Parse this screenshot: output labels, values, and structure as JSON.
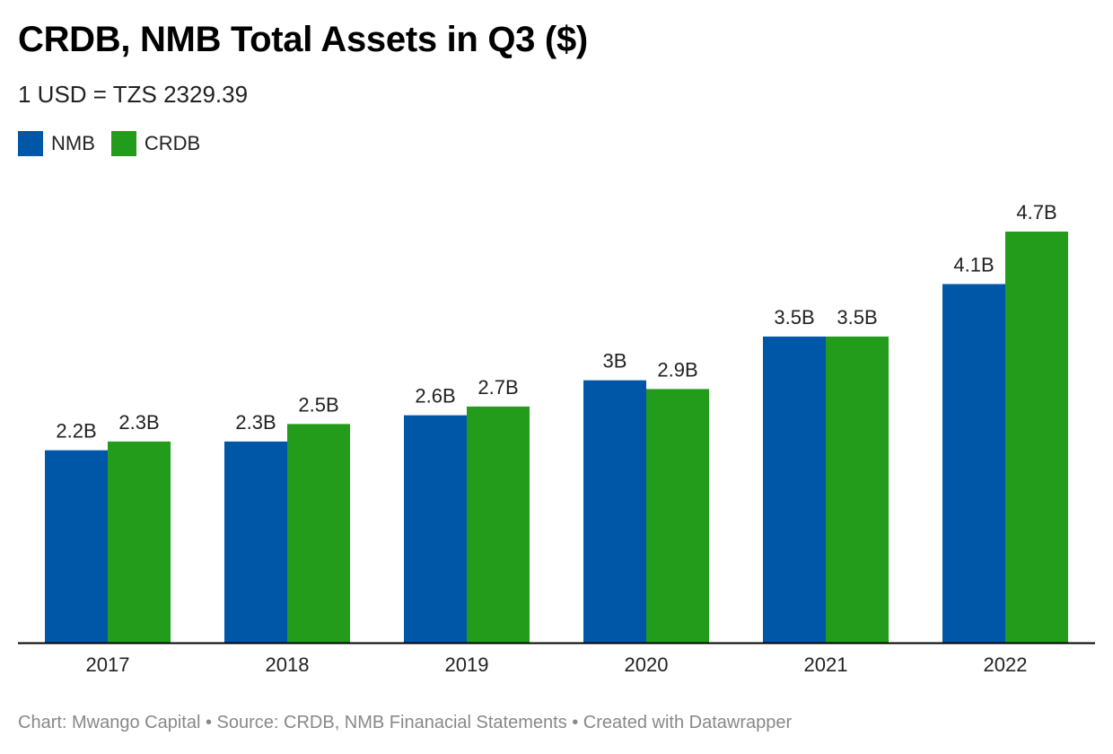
{
  "colors": {
    "NMB": "#0057A8",
    "CRDB": "#239B1B",
    "axis": "#000000",
    "label": "#222222"
  },
  "chart_data": {
    "type": "bar",
    "title": "CRDB, NMB Total Assets in Q3 ($)",
    "subtitle": "1 USD = TZS 2329.39",
    "categories": [
      "2017",
      "2018",
      "2019",
      "2020",
      "2021",
      "2022"
    ],
    "series": [
      {
        "name": "NMB",
        "values": [
          2.2,
          2.3,
          2.6,
          3.0,
          3.5,
          4.1
        ],
        "labels": [
          "2.2B",
          "2.3B",
          "2.6B",
          "3B",
          "3.5B",
          "4.1B"
        ]
      },
      {
        "name": "CRDB",
        "values": [
          2.3,
          2.5,
          2.7,
          2.9,
          3.5,
          4.7
        ],
        "labels": [
          "2.3B",
          "2.5B",
          "2.7B",
          "2.9B",
          "3.5B",
          "4.7B"
        ]
      }
    ],
    "ylim": [
      0,
      4.7
    ],
    "grid": false,
    "legend_position": "top-left"
  },
  "footer": "Chart: Mwango Capital • Source: CRDB, NMB Finanacial Statements • Created with Datawrapper"
}
